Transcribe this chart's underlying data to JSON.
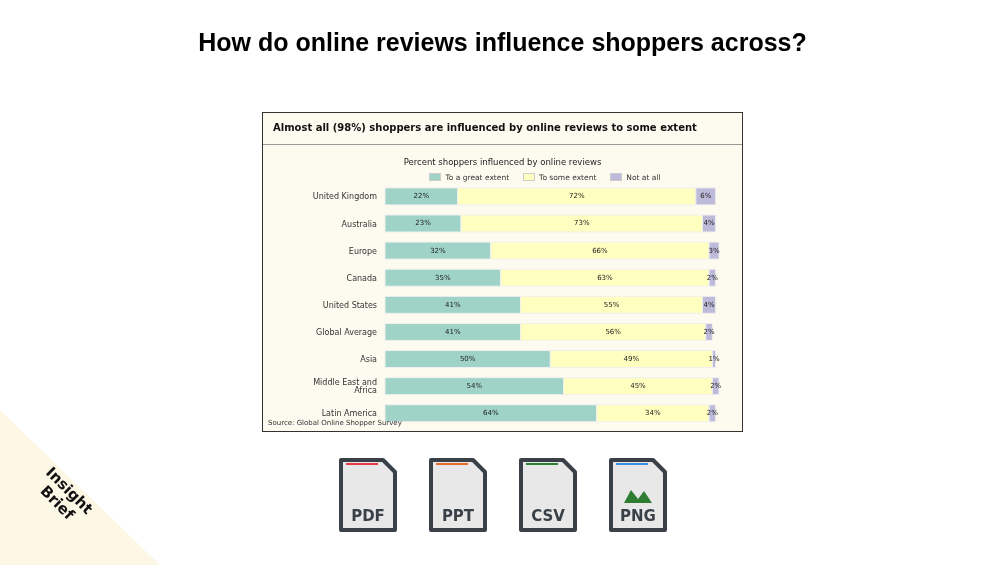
{
  "chart_data": {
    "type": "bar",
    "orientation": "horizontal",
    "stacked": true,
    "title": "Percent shoppers influenced by online reviews",
    "subtitle": "Almost all (98%) shoppers are influenced by online reviews to some extent",
    "categories": [
      "United Kingdom",
      "Australia",
      "Europe",
      "Canada",
      "United States",
      "Global Average",
      "Asia",
      "Middle East and Africa",
      "Latin America"
    ],
    "series": [
      {
        "name": "To a great extent",
        "color": "#9fd3c7",
        "values": [
          22,
          23,
          32,
          35,
          41,
          41,
          50,
          54,
          64
        ],
        "value_labels": [
          "22%",
          "23%",
          "32%",
          "35%",
          "41%",
          "41%",
          "50%",
          "54%",
          "64%"
        ]
      },
      {
        "name": "To some extent",
        "color": "#ffffc0",
        "values": [
          72,
          73,
          66,
          63,
          55,
          56,
          49,
          45,
          34
        ],
        "value_labels": [
          "72%",
          "73%",
          "66%",
          "63%",
          "55%",
          "56%",
          "49%",
          "45%",
          "34%"
        ]
      },
      {
        "name": "Not at all",
        "color": "#bebada",
        "values": [
          6,
          4,
          3,
          2,
          4,
          2,
          1,
          2,
          2
        ],
        "value_labels": [
          "6%",
          "4%",
          "3%",
          "2%",
          "4%",
          "2%",
          "1%",
          "2%",
          "2%"
        ]
      }
    ],
    "legend": "top",
    "annotations": [
      "How do online reviews influence shoppers across?",
      "Source: Global Online Shopper Survey",
      "Insight Brief",
      "PDF",
      "PPT",
      "CSV",
      "PNG"
    ]
  }
}
